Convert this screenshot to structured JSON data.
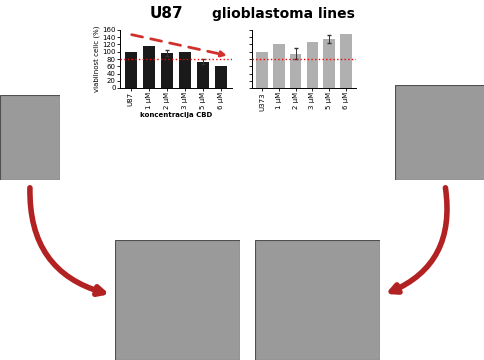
{
  "chart_data": [
    {
      "type": "bar",
      "title": "U87",
      "subtitle": "glioblastoma lines",
      "y_label": "viabilnost celic (%)",
      "x_label": "koncentracija CBD",
      "categories": [
        "U87",
        "1 µM",
        "2 µM",
        "3 µM",
        "5 µM",
        "6 µM"
      ],
      "values": [
        100,
        117,
        96,
        99,
        72,
        62
      ],
      "errors": [
        null,
        null,
        8,
        null,
        7,
        null
      ],
      "threshold": 80,
      "color": "#1a1a1a",
      "ylim": [
        0,
        160
      ],
      "yticks": [
        0,
        20,
        40,
        60,
        80,
        100,
        120,
        140,
        160
      ]
    },
    {
      "type": "bar",
      "categories": [
        "U373",
        "1 µM",
        "2 µM",
        "3 µM",
        "5 µM",
        "6 µM"
      ],
      "values": [
        100,
        120,
        94,
        128,
        135,
        148
      ],
      "errors": [
        null,
        null,
        15,
        null,
        12,
        null
      ],
      "threshold": 80,
      "color": "#b0b0b0",
      "ylim": [
        0,
        160
      ],
      "yticks": [
        0,
        20,
        40,
        60,
        80,
        100,
        120,
        140,
        160
      ],
      "tick_labels": "x"
    }
  ]
}
